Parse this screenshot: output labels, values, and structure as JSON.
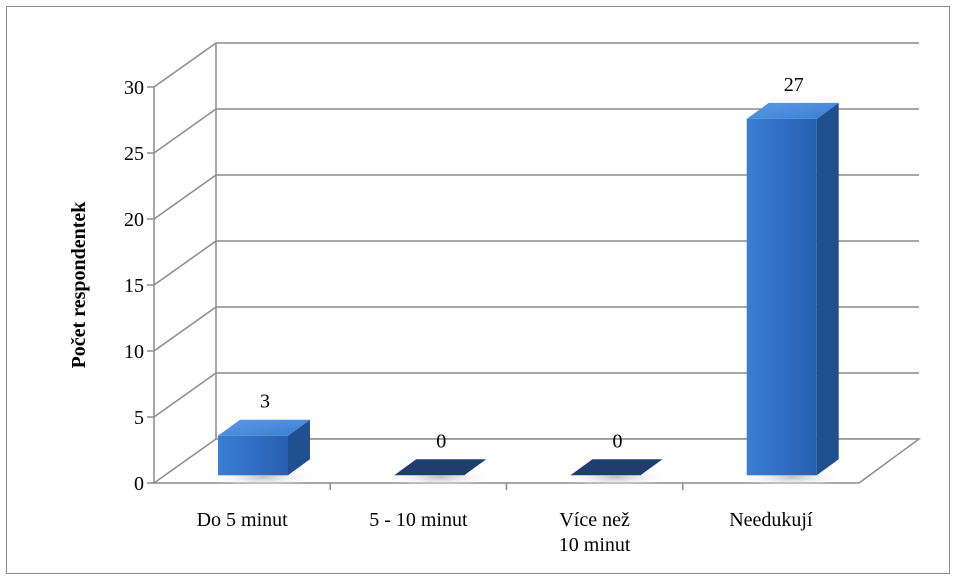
{
  "chart_data": {
    "type": "bar",
    "title": "",
    "xlabel": "",
    "ylabel": "Počet respondentek",
    "categories": [
      [
        "Do 5 minut"
      ],
      [
        "5 - 10 minut"
      ],
      [
        "Více než",
        "10 minut"
      ],
      [
        "Needukují"
      ]
    ],
    "values": [
      3,
      0,
      0,
      27
    ],
    "ylim": [
      0,
      30
    ],
    "yticks": [
      0,
      5,
      10,
      15,
      20,
      25,
      30
    ],
    "grid": true,
    "legend": "none",
    "bar_color": "#2e6fc4",
    "bar_side_color": "#1f4f8f",
    "bar_top_color": "#4a8be0"
  }
}
